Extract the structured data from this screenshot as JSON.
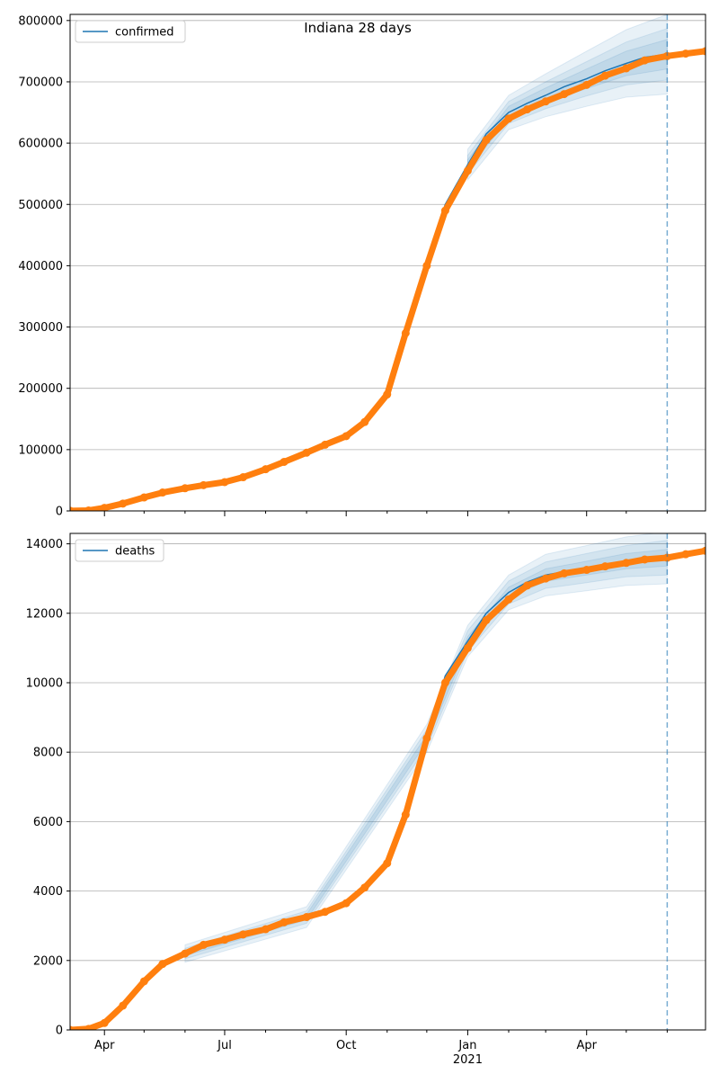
{
  "figure": {
    "suptitle": "Indiana 28 days"
  },
  "chart_data": [
    {
      "type": "line",
      "title": "",
      "xlabel": "",
      "ylabel": "",
      "legend": "top-left",
      "grid": "horizontal",
      "x_axis": {
        "start": "2020-03-06",
        "end": "2021-06-30",
        "tick_labels": [
          "",
          "",
          "",
          "",
          "",
          "",
          ""
        ]
      },
      "ylim": [
        0,
        810000
      ],
      "yticks": [
        0,
        100000,
        200000,
        300000,
        400000,
        500000,
        600000,
        700000,
        800000
      ],
      "ytick_labels": [
        "0",
        "100000",
        "200000",
        "300000",
        "400000",
        "500000",
        "600000",
        "700000",
        "800000"
      ],
      "forecast_line_date": "2021-06-01",
      "colors": {
        "model": "#1f77b4",
        "observed": "#ff7f0e",
        "band": "#1f77b4",
        "vline": "#1f77b4"
      },
      "series": [
        {
          "name": "confirmed",
          "kind": "model",
          "dates": [
            "2020-03-06",
            "2020-03-20",
            "2020-04-01",
            "2020-04-15",
            "2020-05-01",
            "2020-05-15",
            "2020-06-01",
            "2020-06-15",
            "2020-07-01",
            "2020-07-15",
            "2020-08-01",
            "2020-08-15",
            "2020-09-01",
            "2020-09-15",
            "2020-10-01",
            "2020-10-15",
            "2020-11-01",
            "2020-11-15",
            "2020-12-01",
            "2020-12-15",
            "2021-01-01",
            "2021-01-15",
            "2021-02-01",
            "2021-02-15",
            "2021-03-01",
            "2021-03-15",
            "2021-04-01",
            "2021-04-15",
            "2021-05-01",
            "2021-05-15",
            "2021-06-01"
          ],
          "values": [
            200,
            800,
            5000,
            12000,
            22000,
            30000,
            37000,
            42000,
            47000,
            55000,
            68000,
            80000,
            95000,
            108000,
            122000,
            145000,
            190000,
            290000,
            410000,
            500000,
            565000,
            615000,
            650000,
            665000,
            678000,
            692000,
            705000,
            718000,
            730000,
            740000,
            745000
          ]
        },
        {
          "name": "",
          "kind": "observed",
          "dates": [
            "2020-03-06",
            "2020-03-20",
            "2020-04-01",
            "2020-04-15",
            "2020-05-01",
            "2020-05-15",
            "2020-06-01",
            "2020-06-15",
            "2020-07-01",
            "2020-07-15",
            "2020-08-01",
            "2020-08-15",
            "2020-09-01",
            "2020-09-15",
            "2020-10-01",
            "2020-10-15",
            "2020-11-01",
            "2020-11-15",
            "2020-12-01",
            "2020-12-15",
            "2021-01-01",
            "2021-01-15",
            "2021-02-01",
            "2021-02-15",
            "2021-03-01",
            "2021-03-15",
            "2021-04-01",
            "2021-04-15",
            "2021-05-01",
            "2021-05-15",
            "2021-06-01",
            "2021-06-15",
            "2021-06-30"
          ],
          "values": [
            200,
            800,
            5000,
            12000,
            22000,
            30000,
            37000,
            42000,
            47000,
            55000,
            68000,
            80000,
            95000,
            108000,
            122000,
            145000,
            190000,
            290000,
            400000,
            490000,
            555000,
            605000,
            640000,
            655000,
            668000,
            680000,
            695000,
            710000,
            722000,
            735000,
            742000,
            746000,
            750000
          ]
        }
      ],
      "bands": [
        {
          "dates": [
            "2021-01-01",
            "2021-02-01",
            "2021-03-01",
            "2021-04-01",
            "2021-05-01",
            "2021-06-01"
          ],
          "spread": [
            25000,
            28000,
            35000,
            45000,
            55000,
            65000
          ]
        },
        {
          "dates": [
            "2021-01-01",
            "2021-02-01",
            "2021-03-01",
            "2021-04-01",
            "2021-05-01",
            "2021-06-01"
          ],
          "spread": [
            15000,
            18000,
            22000,
            28000,
            35000,
            42000
          ]
        },
        {
          "dates": [
            "2021-01-01",
            "2021-02-01",
            "2021-03-01",
            "2021-04-01",
            "2021-05-01",
            "2021-06-01"
          ],
          "spread": [
            8000,
            10000,
            12000,
            16000,
            20000,
            24000
          ]
        }
      ]
    },
    {
      "type": "line",
      "title": "",
      "xlabel": "",
      "ylabel": "",
      "legend": "top-left",
      "grid": "horizontal",
      "x_axis": {
        "start": "2020-03-06",
        "end": "2021-06-30",
        "tick_labels": [
          "Apr",
          "Jul",
          "Oct",
          "Jan\n2021",
          "Apr"
        ]
      },
      "ylim": [
        0,
        14300
      ],
      "yticks": [
        0,
        2000,
        4000,
        6000,
        8000,
        10000,
        12000,
        14000
      ],
      "ytick_labels": [
        "0",
        "2000",
        "4000",
        "6000",
        "8000",
        "10000",
        "12000",
        "14000"
      ],
      "forecast_line_date": "2021-06-01",
      "colors": {
        "model": "#1f77b4",
        "observed": "#ff7f0e",
        "band": "#1f77b4",
        "vline": "#1f77b4"
      },
      "series": [
        {
          "name": "deaths",
          "kind": "model",
          "dates": [
            "2020-03-06",
            "2020-03-20",
            "2020-04-01",
            "2020-04-15",
            "2020-05-01",
            "2020-05-15",
            "2020-06-01",
            "2020-06-15",
            "2020-07-01",
            "2020-07-15",
            "2020-08-01",
            "2020-08-15",
            "2020-09-01",
            "2020-09-15",
            "2020-10-01",
            "2020-10-15",
            "2020-11-01",
            "2020-11-15",
            "2020-12-01",
            "2020-12-15",
            "2021-01-01",
            "2021-01-15",
            "2021-02-01",
            "2021-02-15",
            "2021-03-01",
            "2021-03-15",
            "2021-04-01",
            "2021-04-15",
            "2021-05-01",
            "2021-05-15",
            "2021-06-01"
          ],
          "values": [
            0,
            30,
            200,
            700,
            1400,
            1900,
            2200,
            2450,
            2600,
            2750,
            2900,
            3100,
            3250,
            3400,
            3650,
            4100,
            4800,
            6200,
            8400,
            10200,
            11200,
            12000,
            12600,
            12900,
            13100,
            13200,
            13300,
            13400,
            13500,
            13550,
            13600
          ]
        },
        {
          "name": "",
          "kind": "observed",
          "dates": [
            "2020-03-06",
            "2020-03-20",
            "2020-04-01",
            "2020-04-15",
            "2020-05-01",
            "2020-05-15",
            "2020-06-01",
            "2020-06-15",
            "2020-07-01",
            "2020-07-15",
            "2020-08-01",
            "2020-08-15",
            "2020-09-01",
            "2020-09-15",
            "2020-10-01",
            "2020-10-15",
            "2020-11-01",
            "2020-11-15",
            "2020-12-01",
            "2020-12-15",
            "2021-01-01",
            "2021-01-15",
            "2021-02-01",
            "2021-02-15",
            "2021-03-01",
            "2021-03-15",
            "2021-04-01",
            "2021-04-15",
            "2021-05-01",
            "2021-05-15",
            "2021-06-01",
            "2021-06-15",
            "2021-06-30"
          ],
          "values": [
            0,
            30,
            200,
            700,
            1400,
            1900,
            2200,
            2450,
            2600,
            2750,
            2900,
            3100,
            3250,
            3400,
            3650,
            4100,
            4800,
            6200,
            8400,
            10000,
            11000,
            11800,
            12400,
            12800,
            13000,
            13150,
            13250,
            13350,
            13450,
            13550,
            13600,
            13700,
            13800
          ]
        }
      ],
      "bands": [
        {
          "dates": [
            "2020-06-01",
            "2020-09-01",
            "2020-12-01",
            "2021-01-01",
            "2021-02-01",
            "2021-03-01",
            "2021-04-01",
            "2021-05-01",
            "2021-06-01"
          ],
          "spread": [
            250,
            300,
            400,
            450,
            500,
            600,
            650,
            700,
            750
          ]
        },
        {
          "dates": [
            "2020-06-01",
            "2020-09-01",
            "2020-12-01",
            "2021-01-01",
            "2021-02-01",
            "2021-03-01",
            "2021-04-01",
            "2021-05-01",
            "2021-06-01"
          ],
          "spread": [
            150,
            180,
            250,
            300,
            330,
            380,
            420,
            450,
            500
          ]
        },
        {
          "dates": [
            "2020-06-01",
            "2020-09-01",
            "2020-12-01",
            "2021-01-01",
            "2021-02-01",
            "2021-03-01",
            "2021-04-01",
            "2021-05-01",
            "2021-06-01"
          ],
          "spread": [
            60,
            80,
            100,
            130,
            150,
            180,
            200,
            220,
            240
          ]
        }
      ]
    }
  ]
}
